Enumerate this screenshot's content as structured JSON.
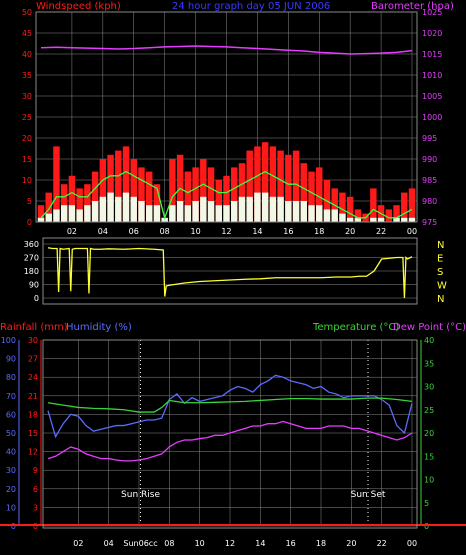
{
  "colors": {
    "grid": "#8a8a8a",
    "red": "#ff1a1a",
    "blue": "#5a6cff",
    "magenta": "#e53cff",
    "yellow": "#ffff33",
    "green": "#3ad43a",
    "green_line": "#39ff39",
    "white_bars": "#f3f7e6",
    "title": "#3a3aff",
    "white": "#ffffff"
  },
  "chart_data": [
    {
      "id": "wind-baro",
      "type": "line",
      "title": "24 hour graph day  05 JUN 2006",
      "left_label": "Windspeed (kph)",
      "right_label": "Barometer (hpa)",
      "left_ticks": [
        "0",
        "5",
        "10",
        "15",
        "20",
        "25",
        "30",
        "35",
        "40",
        "45",
        "50"
      ],
      "right_ticks": [
        "975",
        "980",
        "985",
        "990",
        "995",
        "1000",
        "1005",
        "1010",
        "1015",
        "1020",
        "1025"
      ],
      "ylim_left": [
        0,
        50
      ],
      "ylim_right": [
        975,
        1025
      ],
      "x_ticks": [
        "02",
        "04",
        "06",
        "08",
        "10",
        "12",
        "14",
        "16",
        "18",
        "20",
        "22",
        "00"
      ],
      "series": [
        {
          "key": "gust",
          "legend": "",
          "axis": "left",
          "style": "bars",
          "color": "red",
          "x": [
            0,
            0.5,
            1,
            1.5,
            2,
            2.5,
            3,
            3.5,
            4,
            4.5,
            5,
            5.5,
            6,
            6.5,
            7,
            7.5,
            8,
            8.5,
            9,
            9.5,
            10,
            10.5,
            11,
            11.5,
            12,
            12.5,
            13,
            13.5,
            14,
            14.5,
            15,
            15.5,
            16,
            16.5,
            17,
            17.5,
            18,
            18.5,
            19,
            19.5,
            20,
            20.5,
            21,
            21.5,
            22,
            22.5,
            23,
            23.5,
            24
          ],
          "values": [
            4,
            7,
            18,
            9,
            11,
            8,
            9,
            12,
            15,
            16,
            17,
            18,
            15,
            13,
            12,
            9,
            1,
            15,
            16,
            12,
            13,
            15,
            13,
            10,
            11,
            13,
            14,
            17,
            18,
            19,
            18,
            17,
            16,
            17,
            14,
            12,
            13,
            10,
            8,
            7,
            6,
            3,
            2,
            8,
            4,
            3,
            4,
            7,
            8
          ]
        },
        {
          "key": "avg",
          "legend": "",
          "axis": "left",
          "style": "line",
          "color": "green_line",
          "x": [
            0,
            0.5,
            1,
            1.5,
            2,
            2.5,
            3,
            3.5,
            4,
            4.5,
            5,
            5.5,
            6,
            6.5,
            7,
            7.5,
            8,
            8.5,
            9,
            9.5,
            10,
            10.5,
            11,
            11.5,
            12,
            12.5,
            13,
            13.5,
            14,
            14.5,
            15,
            15.5,
            16,
            16.5,
            17,
            17.5,
            18,
            18.5,
            19,
            19.5,
            20,
            20.5,
            21,
            21.5,
            22,
            22.5,
            23,
            23.5,
            24
          ],
          "values": [
            1,
            3,
            6,
            6,
            7,
            6,
            6,
            8,
            10,
            11,
            11,
            12,
            11,
            10,
            9,
            8,
            1,
            6,
            8,
            7,
            8,
            9,
            8,
            7,
            7,
            8,
            9,
            10,
            11,
            12,
            11,
            10,
            9,
            9,
            8,
            7,
            6,
            5,
            4,
            3,
            2,
            1,
            1,
            3,
            2,
            1,
            1,
            2,
            3
          ]
        },
        {
          "key": "wind",
          "legend": "",
          "axis": "left",
          "style": "bars",
          "color": "white_bars",
          "x": [
            0,
            0.5,
            1,
            1.5,
            2,
            2.5,
            3,
            3.5,
            4,
            4.5,
            5,
            5.5,
            6,
            6.5,
            7,
            7.5,
            8,
            8.5,
            9,
            9.5,
            10,
            10.5,
            11,
            11.5,
            12,
            12.5,
            13,
            13.5,
            14,
            14.5,
            15,
            15.5,
            16,
            16.5,
            17,
            17.5,
            18,
            18.5,
            19,
            19.5,
            20,
            20.5,
            21,
            21.5,
            22,
            22.5,
            23,
            23.5,
            24
          ],
          "values": [
            1,
            2,
            3,
            4,
            4,
            3,
            4,
            5,
            6,
            7,
            6,
            7,
            6,
            5,
            4,
            4,
            1,
            4,
            5,
            4,
            5,
            6,
            5,
            4,
            4,
            5,
            6,
            6,
            7,
            7,
            6,
            6,
            5,
            5,
            5,
            4,
            4,
            3,
            3,
            2,
            1,
            1,
            0,
            1,
            1,
            0,
            1,
            1,
            1
          ]
        },
        {
          "key": "baro",
          "legend": "",
          "axis": "right",
          "style": "line",
          "color": "magenta",
          "x": [
            0,
            1,
            2,
            3,
            4,
            5,
            6,
            7,
            8,
            9,
            10,
            11,
            12,
            13,
            14,
            15,
            16,
            17,
            18,
            19,
            20,
            21,
            22,
            23,
            24
          ],
          "values": [
            1016.5,
            1016.6,
            1016.5,
            1016.4,
            1016.3,
            1016.2,
            1016.3,
            1016.5,
            1016.7,
            1016.8,
            1016.9,
            1016.8,
            1016.7,
            1016.5,
            1016.3,
            1016.1,
            1015.9,
            1015.7,
            1015.4,
            1015.2,
            1015.0,
            1015.1,
            1015.2,
            1015.4,
            1015.8
          ]
        }
      ]
    },
    {
      "id": "wind-dir",
      "type": "line",
      "left_ticks": [
        "0",
        "90",
        "180",
        "270",
        "360"
      ],
      "ylim": [
        0,
        360
      ],
      "compass_labels": [
        "N",
        "W",
        "S",
        "E",
        "N"
      ],
      "series": [
        {
          "key": "direction",
          "legend": "",
          "axis": "left",
          "style": "line",
          "color": "yellow",
          "x": [
            0,
            0.3,
            0.6,
            0.7,
            0.8,
            1.0,
            1.4,
            1.5,
            1.6,
            1.8,
            2.2,
            2.6,
            2.7,
            2.8,
            3.0,
            3.5,
            4,
            5,
            6,
            7,
            7.6,
            7.7,
            7.8,
            8,
            9,
            10,
            11,
            12,
            13,
            14,
            15,
            16,
            17,
            18,
            19,
            20,
            20.5,
            21,
            21.5,
            22,
            22.5,
            23,
            23.4,
            23.5,
            23.6,
            23.7,
            24
          ],
          "values": [
            335,
            330,
            330,
            40,
            330,
            325,
            330,
            45,
            325,
            330,
            330,
            330,
            30,
            330,
            325,
            325,
            328,
            325,
            330,
            325,
            320,
            10,
            80,
            85,
            100,
            110,
            115,
            120,
            125,
            128,
            135,
            135,
            135,
            135,
            140,
            140,
            145,
            145,
            180,
            260,
            265,
            270,
            270,
            0,
            270,
            260,
            275
          ]
        }
      ]
    },
    {
      "id": "rain-hum-temp",
      "type": "line",
      "left_title_1": "Rainfall (mm)",
      "left_title_2": "Humidity (%)",
      "right_title_1": "Temperature (°C)",
      "right_title_2": "Dew Point (°C)",
      "rain_ticks": [
        "0",
        "3",
        "6",
        "9",
        "12",
        "15",
        "18",
        "21",
        "24",
        "27",
        "30"
      ],
      "hum_ticks": [
        "0",
        "10",
        "20",
        "30",
        "40",
        "50",
        "60",
        "70",
        "80",
        "90",
        "100"
      ],
      "temp_ticks": [
        "0",
        "5",
        "10",
        "15",
        "20",
        "25",
        "30",
        "35",
        "40"
      ],
      "ylim_humidity": [
        0,
        100
      ],
      "ylim_temp": [
        0,
        40
      ],
      "x_ticks": [
        "02",
        "04",
        "06",
        "08",
        "10",
        "12",
        "14",
        "16",
        "18",
        "20",
        "22",
        "00"
      ],
      "sun_rise_label": "Sun Rise",
      "sun_set_label": "Sun Set",
      "sun_time_label": "Sun06cc",
      "sun_rise_x": 6.1,
      "sun_set_x": 21.1,
      "series": [
        {
          "key": "humidity",
          "legend": "",
          "axis": "humidity",
          "color": "blue",
          "x": [
            0,
            0.5,
            1,
            1.5,
            2,
            2.5,
            3,
            3.5,
            4,
            4.5,
            5,
            5.5,
            6,
            6.5,
            7,
            7.5,
            8,
            8.5,
            9,
            9.5,
            10,
            10.5,
            11,
            11.5,
            12,
            12.5,
            13,
            13.5,
            14,
            14.5,
            15,
            15.5,
            16,
            16.5,
            17,
            17.5,
            18,
            18.5,
            19,
            19.5,
            20,
            20.5,
            21,
            21.5,
            22,
            22.5,
            23,
            23.5,
            24
          ],
          "values": [
            62,
            48,
            55,
            60,
            59,
            54,
            51,
            52,
            53,
            54,
            54,
            55,
            56,
            57,
            57,
            58,
            68,
            71,
            66,
            69,
            67,
            68,
            69,
            70,
            73,
            75,
            74,
            72,
            76,
            78,
            81,
            80,
            78,
            77,
            76,
            74,
            75,
            72,
            71,
            69,
            70,
            70,
            70,
            70,
            68,
            65,
            54,
            50,
            66
          ]
        },
        {
          "key": "dewpoint",
          "legend": "",
          "axis": "temp",
          "color": "magenta",
          "x": [
            0,
            0.5,
            1,
            1.5,
            2,
            2.5,
            3,
            3.5,
            4,
            4.5,
            5,
            5.5,
            6,
            6.5,
            7,
            7.5,
            8,
            8.5,
            9,
            9.5,
            10,
            10.5,
            11,
            11.5,
            12,
            12.5,
            13,
            13.5,
            14,
            14.5,
            15,
            15.5,
            16,
            16.5,
            17,
            17.5,
            18,
            18.5,
            19,
            19.5,
            20,
            20.5,
            21,
            21.5,
            22,
            22.5,
            23,
            23.5,
            24
          ],
          "values": [
            14.5,
            15,
            16,
            17,
            16.5,
            15.5,
            15,
            14.5,
            14.5,
            14.2,
            14,
            14,
            14.2,
            14.5,
            15,
            15.5,
            17,
            18,
            18.5,
            18.5,
            18.8,
            19,
            19.5,
            19.5,
            20,
            20.5,
            21,
            21.5,
            21.5,
            22,
            22,
            22.5,
            22,
            21.5,
            21,
            21,
            21,
            21.5,
            21.5,
            21.5,
            21,
            21,
            20.5,
            20,
            19.5,
            19,
            18.5,
            19,
            20
          ]
        },
        {
          "key": "temperature",
          "legend": "",
          "axis": "temp",
          "color": "green",
          "x": [
            0,
            1,
            2,
            3,
            4,
            5,
            6,
            6.5,
            7,
            7.5,
            8,
            9,
            10,
            11,
            12,
            13,
            14,
            15,
            16,
            17,
            18,
            19,
            20,
            21,
            22,
            23,
            24
          ],
          "values": [
            26.5,
            26,
            25.5,
            25.3,
            25.2,
            25,
            24.5,
            24.5,
            24.5,
            25.5,
            27,
            26.5,
            26.5,
            26.6,
            26.7,
            26.8,
            27,
            27.2,
            27.4,
            27.4,
            27.3,
            27.3,
            27.3,
            27.5,
            27.5,
            27.2,
            26.8
          ]
        },
        {
          "key": "rainfall",
          "legend": "",
          "axis": "humidity",
          "color": "red",
          "x": [
            0,
            24
          ],
          "values": [
            0,
            0
          ]
        }
      ]
    }
  ]
}
